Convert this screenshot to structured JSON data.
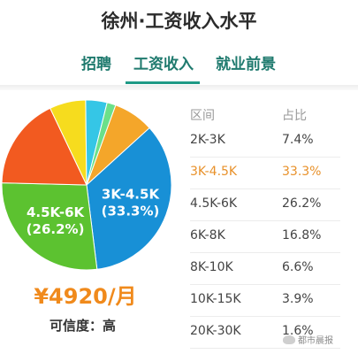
{
  "header": {
    "title": "徐州·工资收入水平"
  },
  "tabs": [
    {
      "label": "招聘",
      "active": false
    },
    {
      "label": "工资收入",
      "active": true
    },
    {
      "label": "就业前景",
      "active": false
    }
  ],
  "summary": {
    "average": "¥4920/月",
    "credibility_label": "可信度：",
    "credibility_value": "高"
  },
  "watermark": "都市晨报",
  "colors": {
    "tab_text": "#1f7a6e",
    "accent_orange": "#f08a1c",
    "highlight_row": "#e8912a"
  },
  "chart_data": {
    "type": "pie",
    "columns": [
      "区间",
      "占比"
    ],
    "categories": [
      "2K-3K",
      "3K-4.5K",
      "4.5K-6K",
      "6K-8K",
      "8K-10K",
      "10K-15K",
      "20K-30K"
    ],
    "values": [
      7.4,
      33.3,
      26.2,
      16.8,
      6.6,
      3.9,
      1.6
    ],
    "value_labels": [
      "7.4%",
      "33.3%",
      "26.2%",
      "16.8%",
      "6.6%",
      "3.9%",
      "1.6%"
    ],
    "slice_labels": [
      {
        "range": "3K-4.5K",
        "percent": "(33.3%)"
      },
      {
        "range": "4.5K-6K",
        "percent": "(26.2%)"
      }
    ],
    "highlighted": "3K-4.5K",
    "colors": [
      "#f4a62a",
      "#1890d6",
      "#5cc230",
      "#f25a20",
      "#f6dc1e",
      "#35c6e6",
      "#6be08a"
    ]
  }
}
